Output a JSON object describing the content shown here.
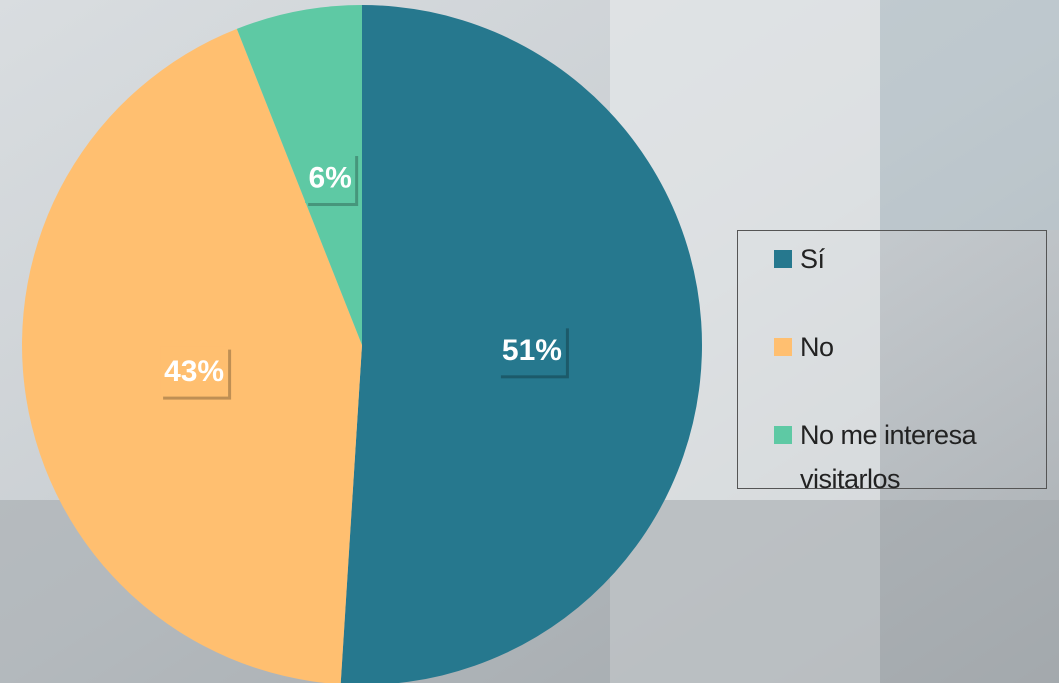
{
  "chart_data": {
    "type": "pie",
    "categories": [
      "Sí",
      "No",
      "No me interesa visitarlos"
    ],
    "values": [
      51,
      43,
      6
    ],
    "value_labels": [
      "51%",
      "43%",
      "6%"
    ],
    "colors": [
      "#26788e",
      "#ffbf70",
      "#5ec9a4"
    ],
    "legend": "right"
  }
}
